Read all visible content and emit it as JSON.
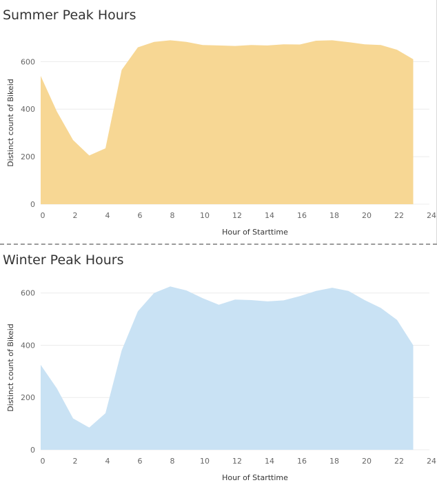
{
  "chart_data": [
    {
      "type": "area",
      "title": "Summer Peak Hours",
      "xlabel": "Hour of Starttime",
      "ylabel": "Distinct count of Bikeid",
      "xlim": [
        0,
        24
      ],
      "ylim": [
        0,
        720
      ],
      "x_ticks": [
        0,
        2,
        4,
        6,
        8,
        10,
        12,
        14,
        16,
        18,
        20,
        22,
        24
      ],
      "y_ticks": [
        0,
        200,
        400,
        600
      ],
      "grid": true,
      "color": "#f7d794",
      "x": [
        0,
        1,
        2,
        3,
        4,
        5,
        6,
        7,
        8,
        9,
        10,
        11,
        12,
        13,
        14,
        15,
        16,
        17,
        18,
        19,
        20,
        21,
        22,
        23
      ],
      "values": [
        540,
        390,
        270,
        205,
        235,
        565,
        660,
        683,
        690,
        683,
        670,
        668,
        666,
        670,
        668,
        673,
        672,
        688,
        690,
        682,
        673,
        670,
        650,
        610
      ]
    },
    {
      "type": "area",
      "title": "Winter Peak Hours",
      "xlabel": "Hour of Starttime",
      "ylabel": "Distinct count of Bikeid",
      "xlim": [
        0,
        24
      ],
      "ylim": [
        0,
        660
      ],
      "x_ticks": [
        0,
        2,
        4,
        6,
        8,
        10,
        12,
        14,
        16,
        18,
        20,
        22,
        24
      ],
      "y_ticks": [
        0,
        200,
        400,
        600
      ],
      "grid": true,
      "color": "#c9e2f4",
      "x": [
        0,
        1,
        2,
        3,
        4,
        5,
        6,
        7,
        8,
        9,
        10,
        11,
        12,
        13,
        14,
        15,
        16,
        17,
        18,
        19,
        20,
        21,
        22,
        23
      ],
      "values": [
        325,
        235,
        120,
        85,
        140,
        380,
        530,
        600,
        625,
        610,
        580,
        555,
        575,
        573,
        568,
        572,
        588,
        608,
        620,
        608,
        573,
        543,
        497,
        400
      ]
    }
  ]
}
